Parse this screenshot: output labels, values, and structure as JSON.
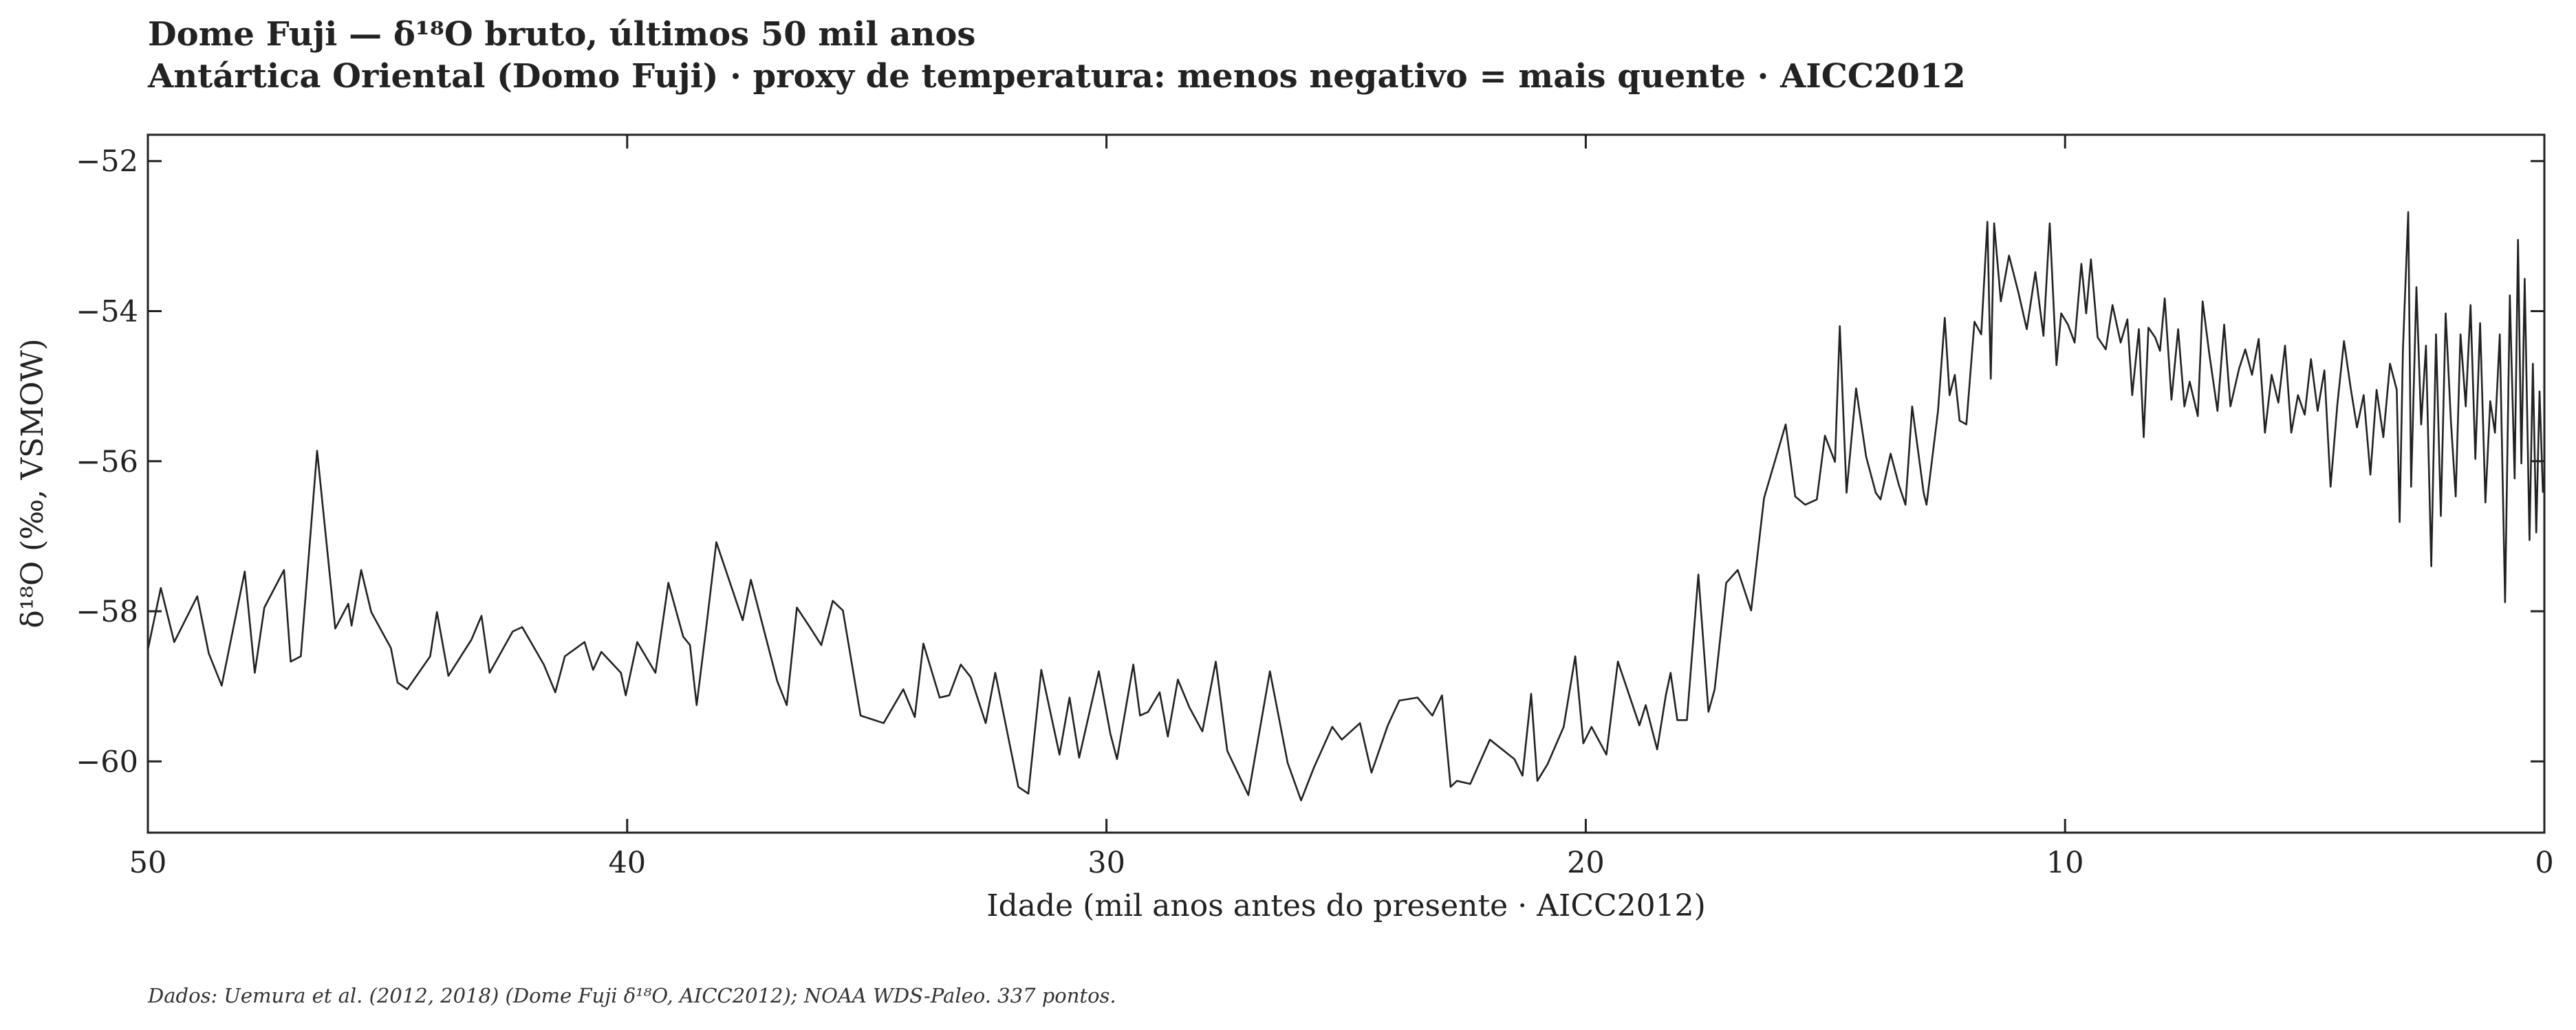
{
  "chart_data": {
    "type": "line",
    "title": "Dome Fuji — δ¹⁸O bruto, últimos 50 mil anos",
    "subtitle": "Antártica Oriental (Domo Fuji) · proxy de temperatura: menos negativo = mais quente · AICC2012",
    "x_label": "Idade (mil anos antes do presente · AICC2012)",
    "y_label": "δ¹⁸O (‰, VSMOW)",
    "footnote": "Dados: Uemura et al. (2012, 2018) (Dome Fuji δ¹⁸O, AICC2012); NOAA WDS-Paleo. 337 pontos.",
    "color": "#222222",
    "xlim": [
      50,
      0
    ],
    "ylim": [
      -60.95,
      -51.65
    ],
    "xticks": [
      50,
      40,
      30,
      20,
      10,
      0
    ],
    "yticks": [
      {
        "value": -60,
        "label": "−60"
      },
      {
        "value": -58,
        "label": "−58"
      },
      {
        "value": -56,
        "label": "−56"
      },
      {
        "value": -54,
        "label": "−54"
      },
      {
        "value": -52,
        "label": "−52"
      }
    ],
    "x": [
      50.0,
      49.73,
      49.45,
      48.97,
      48.73,
      48.46,
      47.98,
      47.77,
      47.57,
      47.16,
      47.02,
      46.81,
      46.47,
      46.09,
      45.82,
      45.75,
      45.55,
      45.34,
      44.93,
      44.79,
      44.59,
      44.11,
      43.97,
      43.73,
      43.25,
      43.04,
      42.87,
      42.39,
      42.19,
      41.74,
      41.5,
      41.3,
      40.89,
      40.71,
      40.54,
      40.13,
      40.03,
      39.79,
      39.41,
      39.14,
      38.83,
      38.69,
      38.55,
      38.35,
      38.14,
      37.59,
      37.42,
      36.87,
      36.67,
      36.46,
      36.19,
      35.95,
      35.71,
      35.5,
      35.13,
      34.65,
      34.24,
      34.0,
      33.82,
      33.48,
      33.28,
      33.04,
      32.83,
      32.52,
      32.32,
      31.84,
      31.63,
      31.36,
      30.98,
      30.77,
      30.57,
      30.16,
      29.92,
      29.78,
      29.44,
      29.3,
      29.13,
      28.89,
      28.72,
      28.51,
      28.27,
      28.0,
      27.72,
      27.48,
      27.04,
      26.59,
      26.22,
      25.94,
      25.67,
      25.29,
      25.09,
      24.71,
      24.47,
      24.13,
      23.89,
      23.51,
      23.2,
      23.0,
      22.82,
      22.69,
      22.41,
      22.0,
      21.49,
      21.32,
      21.14,
      21.01,
      20.8,
      20.46,
      20.22,
      20.05,
      19.88,
      19.57,
      19.33,
      18.88,
      18.75,
      18.51,
      18.33,
      18.23,
      18.09,
      17.89,
      17.65,
      17.44,
      17.31,
      17.07,
      16.83,
      16.55,
      16.28,
      15.83,
      15.63,
      15.42,
      15.18,
      15.01,
      14.8,
      14.7,
      14.56,
      14.36,
      14.15,
      13.95,
      13.85,
      13.64,
      13.47,
      13.33,
      13.19,
      12.95,
      12.89,
      12.65,
      12.51,
      12.41,
      12.3,
      12.2,
      12.06,
      11.89,
      11.75,
      11.62,
      11.55,
      11.48,
      11.34,
      11.17,
      10.97,
      10.8,
      10.62,
      10.45,
      10.32,
      10.18,
      10.08,
      9.94,
      9.8,
      9.66,
      9.56,
      9.46,
      9.32,
      9.15,
      9.01,
      8.84,
      8.7,
      8.6,
      8.46,
      8.36,
      8.26,
      8.12,
      8.02,
      7.92,
      7.78,
      7.64,
      7.51,
      7.4,
      7.23,
      7.13,
      6.99,
      6.82,
      6.68,
      6.55,
      6.37,
      6.24,
      6.1,
      5.96,
      5.83,
      5.69,
      5.55,
      5.41,
      5.28,
      5.14,
      5.0,
      4.87,
      4.73,
      4.59,
      4.46,
      4.32,
      4.18,
      4.04,
      3.91,
      3.77,
      3.63,
      3.5,
      3.36,
      3.22,
      3.08,
      3.02,
      2.95,
      2.84,
      2.78,
      2.67,
      2.57,
      2.47,
      2.36,
      2.26,
      2.16,
      2.06,
      1.95,
      1.85,
      1.75,
      1.64,
      1.54,
      1.44,
      1.34,
      1.23,
      1.13,
      1.03,
      0.93,
      0.82,
      0.72,
      0.62,
      0.55,
      0.48,
      0.41,
      0.31,
      0.24,
      0.17,
      0.1,
      0.03
    ],
    "values": [
      -58.51,
      -57.69,
      -58.41,
      -57.8,
      -58.56,
      -58.99,
      -57.47,
      -58.82,
      -57.95,
      -57.45,
      -58.67,
      -58.6,
      -55.86,
      -58.23,
      -57.9,
      -58.19,
      -57.45,
      -58.01,
      -58.49,
      -58.95,
      -59.04,
      -58.6,
      -58.01,
      -58.86,
      -58.38,
      -58.06,
      -58.82,
      -58.27,
      -58.21,
      -58.71,
      -59.08,
      -58.6,
      -58.41,
      -58.78,
      -58.54,
      -58.82,
      -59.12,
      -58.41,
      -58.82,
      -57.62,
      -58.34,
      -58.45,
      -59.25,
      -58.21,
      -57.08,
      -58.12,
      -57.58,
      -58.93,
      -59.25,
      -57.95,
      -58.21,
      -58.45,
      -57.86,
      -57.99,
      -59.39,
      -59.49,
      -59.04,
      -59.41,
      -58.43,
      -59.15,
      -59.12,
      -58.71,
      -58.88,
      -59.49,
      -58.82,
      -60.34,
      -60.43,
      -58.78,
      -59.91,
      -59.15,
      -59.95,
      -58.8,
      -59.63,
      -59.97,
      -58.71,
      -59.39,
      -59.34,
      -59.08,
      -59.67,
      -58.91,
      -59.28,
      -59.6,
      -58.67,
      -59.86,
      -60.45,
      -58.8,
      -60.02,
      -60.52,
      -60.08,
      -59.54,
      -59.71,
      -59.49,
      -60.15,
      -59.52,
      -59.19,
      -59.15,
      -59.39,
      -59.12,
      -60.34,
      -60.26,
      -60.3,
      -59.71,
      -59.97,
      -60.19,
      -59.1,
      -60.26,
      -60.04,
      -59.54,
      -58.6,
      -59.76,
      -59.54,
      -59.91,
      -58.67,
      -59.52,
      -59.25,
      -59.84,
      -59.12,
      -58.82,
      -59.45,
      -59.45,
      -57.51,
      -59.34,
      -59.04,
      -57.62,
      -57.45,
      -57.99,
      -56.49,
      -55.51,
      -56.47,
      -56.58,
      -56.51,
      -55.66,
      -56.01,
      -54.2,
      -56.42,
      -55.03,
      -55.94,
      -56.42,
      -56.51,
      -55.9,
      -56.31,
      -56.58,
      -55.27,
      -56.42,
      -56.58,
      -55.33,
      -54.09,
      -55.12,
      -54.85,
      -55.46,
      -55.51,
      -54.14,
      -54.31,
      -52.81,
      -54.9,
      -52.83,
      -53.87,
      -53.26,
      -53.76,
      -54.24,
      -53.48,
      -54.33,
      -52.83,
      -54.72,
      -54.03,
      -54.18,
      -54.42,
      -53.37,
      -54.03,
      -53.31,
      -54.35,
      -54.51,
      -53.92,
      -54.42,
      -54.11,
      -55.12,
      -54.24,
      -55.68,
      -54.22,
      -54.35,
      -54.53,
      -53.83,
      -55.18,
      -54.24,
      -55.27,
      -54.94,
      -55.4,
      -53.87,
      -54.57,
      -55.33,
      -54.18,
      -55.27,
      -54.77,
      -54.51,
      -54.85,
      -54.37,
      -55.62,
      -54.85,
      -55.22,
      -54.46,
      -55.62,
      -55.12,
      -55.38,
      -54.64,
      -55.33,
      -54.79,
      -56.34,
      -55.25,
      -54.4,
      -55.03,
      -55.55,
      -55.12,
      -56.18,
      -55.05,
      -55.68,
      -54.7,
      -55.05,
      -56.81,
      -54.51,
      -52.68,
      -56.34,
      -53.68,
      -55.51,
      -54.46,
      -57.4,
      -54.31,
      -56.73,
      -54.03,
      -55.46,
      -56.47,
      -54.31,
      -55.27,
      -53.92,
      -55.97,
      -54.16,
      -56.55,
      -55.2,
      -55.62,
      -54.31,
      -57.88,
      -53.79,
      -56.23,
      -53.05,
      -56.03,
      -53.57,
      -57.05,
      -54.7,
      -56.95,
      -55.07,
      -56.42
    ]
  }
}
